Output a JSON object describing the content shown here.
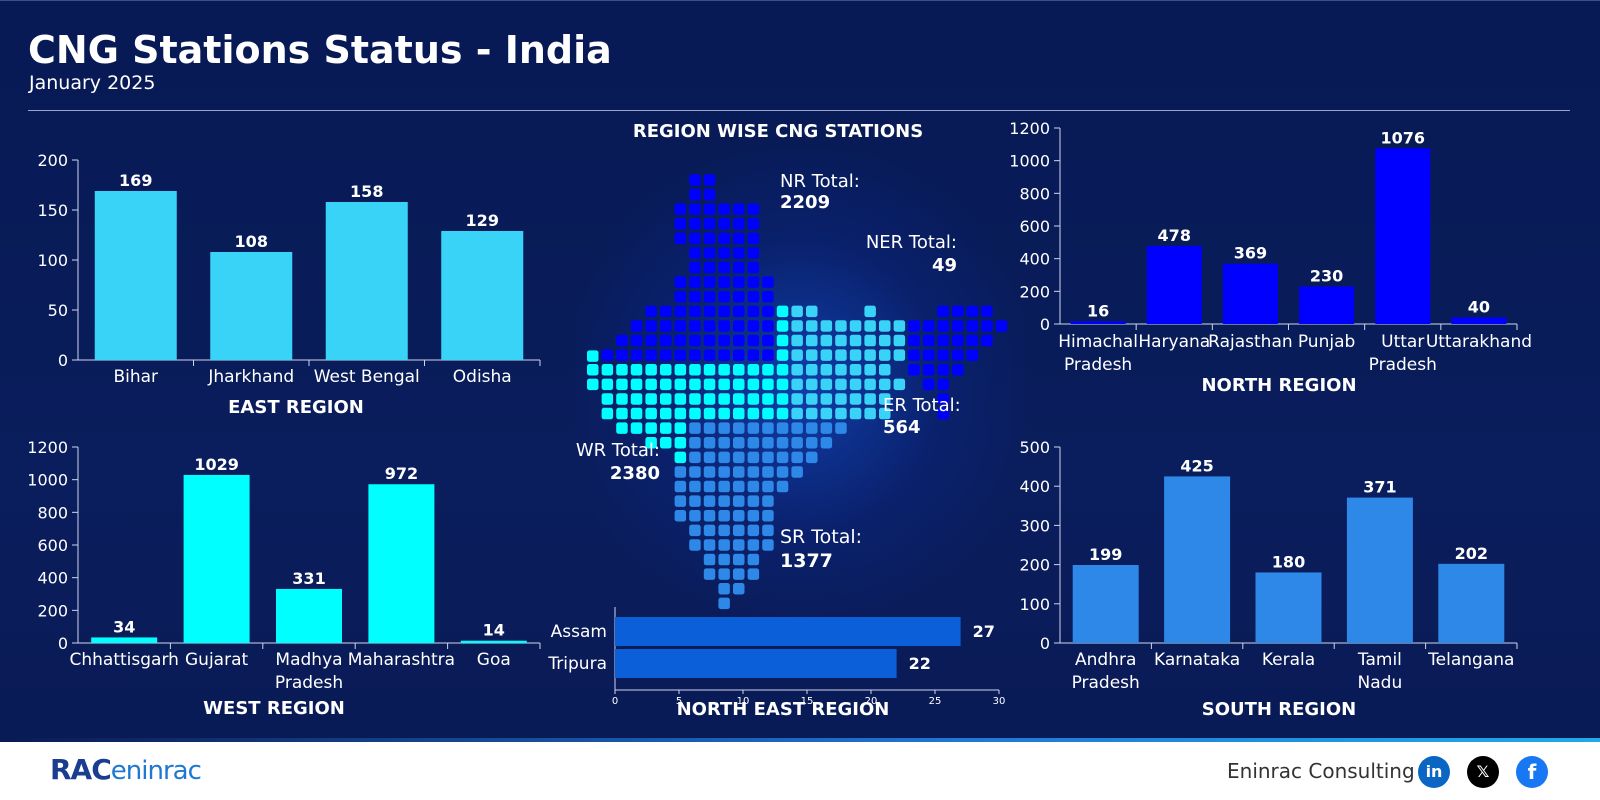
{
  "header": {
    "title": "CNG Stations Status - India",
    "subtitle": "January 2025"
  },
  "colors": {
    "east": "#38d3f7",
    "north": "#0000ff",
    "west": "#00ffff",
    "south": "#2d88e8",
    "northeast": "#0b5fd9"
  },
  "map": {
    "title": "REGION WISE CNG STATIONS",
    "nr_label": "NR Total:",
    "nr_value": "2209",
    "ner_label": "NER Total:",
    "ner_value": "49",
    "er_label": "ER Total:",
    "er_value": "564",
    "wr_label": "WR Total:",
    "wr_value": "2380",
    "sr_label": "SR Total:",
    "sr_value": "1377"
  },
  "chart_data": [
    {
      "id": "east",
      "type": "bar",
      "title": "EAST REGION",
      "categories": [
        "Bihar",
        "Jharkhand",
        "West Bengal",
        "Odisha"
      ],
      "values": [
        169,
        108,
        158,
        129
      ],
      "ylim": [
        0,
        200
      ],
      "yticks": [
        0,
        50,
        100,
        150,
        200
      ]
    },
    {
      "id": "north",
      "type": "bar",
      "title": "NORTH REGION",
      "categories": [
        "Himachal Pradesh",
        "Haryana",
        "Rajasthan",
        "Punjab",
        "Uttar Pradesh",
        "Uttarakhand"
      ],
      "values": [
        16,
        478,
        369,
        230,
        1076,
        40
      ],
      "ylim": [
        0,
        1200
      ],
      "yticks": [
        0,
        200,
        400,
        600,
        800,
        1000,
        1200
      ]
    },
    {
      "id": "west",
      "type": "bar",
      "title": "WEST REGION",
      "categories": [
        "Chhattisgarh",
        "Gujarat",
        "Madhya Pradesh",
        "Maharashtra",
        "Goa"
      ],
      "values": [
        34,
        1029,
        331,
        972,
        14
      ],
      "ylim": [
        0,
        1200
      ],
      "yticks": [
        0,
        200,
        400,
        600,
        800,
        1000,
        1200
      ]
    },
    {
      "id": "south",
      "type": "bar",
      "title": "SOUTH REGION",
      "categories": [
        "Andhra Pradesh",
        "Karnataka",
        "Kerala",
        "Tamil Nadu",
        "Telangana"
      ],
      "values": [
        199,
        425,
        180,
        371,
        202
      ],
      "ylim": [
        0,
        500
      ],
      "yticks": [
        0,
        100,
        200,
        300,
        400,
        500
      ]
    },
    {
      "id": "northeast",
      "type": "bar",
      "orientation": "horizontal",
      "title": "NORTH EAST REGION",
      "categories": [
        "Assam",
        "Tripura"
      ],
      "values": [
        27,
        22
      ],
      "xlim": [
        0,
        30
      ],
      "xticks": [
        0,
        5,
        10,
        15,
        20,
        25,
        30
      ]
    }
  ],
  "footer": {
    "brand_a": "RAC",
    "brand_b": "eninrac",
    "company": "Eninrac Consulting",
    "social": [
      "linkedin-icon",
      "x-icon",
      "facebook-icon"
    ]
  }
}
